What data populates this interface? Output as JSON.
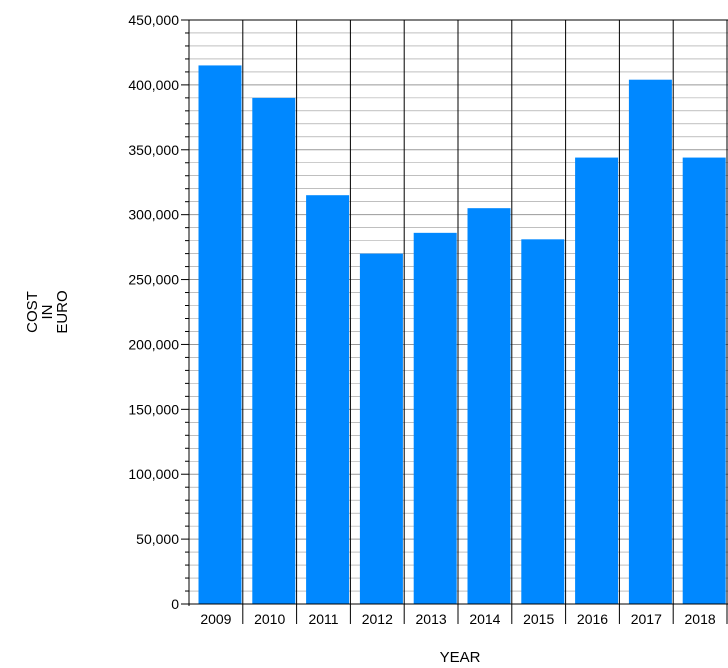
{
  "chart_data": {
    "type": "bar",
    "categories": [
      "2009",
      "2010",
      "2011",
      "2012",
      "2013",
      "2014",
      "2015",
      "2016",
      "2017",
      "2018"
    ],
    "values": [
      415000,
      390000,
      315000,
      270000,
      286000,
      305000,
      281000,
      344000,
      404000,
      344000
    ],
    "ylim": [
      0,
      450000
    ],
    "y_ticks": [
      "0",
      "50,000",
      "100,000",
      "150,000",
      "200,000",
      "250,000",
      "300,000",
      "350,000",
      "400,000",
      "450,000"
    ],
    "xlabel": "YEAR",
    "ylabel_lines": [
      "COST",
      "IN",
      "EURO"
    ],
    "grid": true,
    "bar_color": "#0088ff",
    "grid_color": "#999999"
  }
}
